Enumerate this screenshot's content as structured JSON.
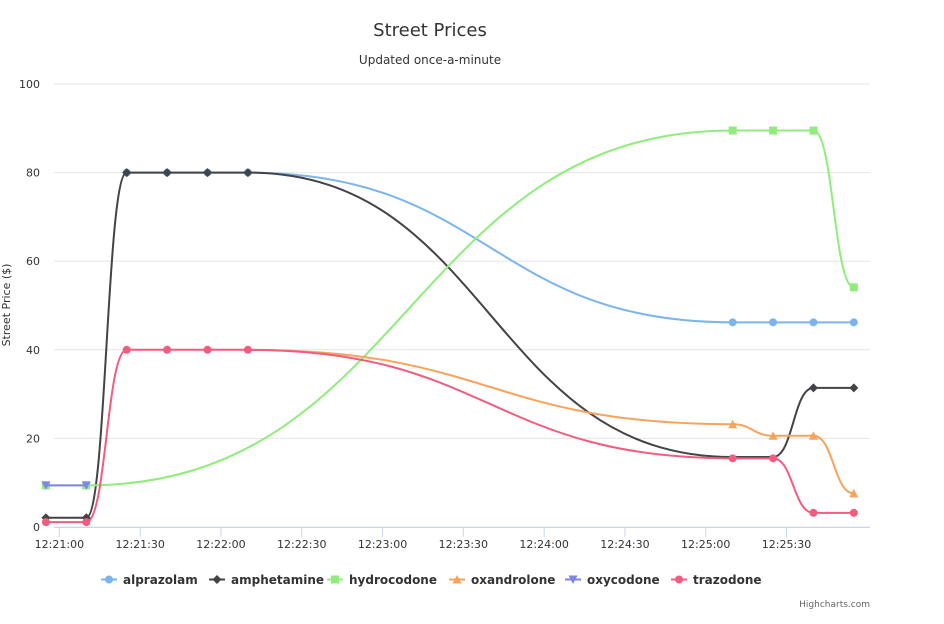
{
  "chart_data": {
    "type": "line",
    "title": "Street Prices",
    "subtitle": "Updated once-a-minute",
    "ylabel": "Street Price ($)",
    "xlabel": "",
    "ylim": [
      0,
      100
    ],
    "yticks": [
      0,
      20,
      40,
      60,
      80,
      100
    ],
    "xlim": [
      "12:20:58",
      "12:26:01"
    ],
    "xticks": [
      "12:21:00",
      "12:21:30",
      "12:22:00",
      "12:22:30",
      "12:23:00",
      "12:23:30",
      "12:24:00",
      "12:24:30",
      "12:25:00",
      "12:25:30"
    ],
    "grid": "horizontal",
    "legend": "bottom",
    "credits": "Highcharts.com",
    "series": [
      {
        "name": "alprazolam",
        "color": "#7cb5ec",
        "marker": "circle",
        "points": [
          {
            "x": "12:21:25",
            "y": 80,
            "m": true
          },
          {
            "x": "12:21:40",
            "y": 80,
            "m": true
          },
          {
            "x": "12:21:55",
            "y": 80,
            "m": true
          },
          {
            "x": "12:22:10",
            "y": 80,
            "m": true
          },
          {
            "x": "12:25:10",
            "y": 46.2,
            "m": true
          },
          {
            "x": "12:25:25",
            "y": 46.2,
            "m": true
          },
          {
            "x": "12:25:40",
            "y": 46.2,
            "m": true
          },
          {
            "x": "12:25:55",
            "y": 46.2,
            "m": true
          }
        ]
      },
      {
        "name": "amphetamine",
        "color": "#434348",
        "marker": "diamond",
        "points": [
          {
            "x": "12:20:55",
            "y": 2.1,
            "m": true
          },
          {
            "x": "12:21:10",
            "y": 2.1,
            "m": true
          },
          {
            "x": "12:21:25",
            "y": 80,
            "m": true
          },
          {
            "x": "12:21:40",
            "y": 80,
            "m": true
          },
          {
            "x": "12:21:55",
            "y": 80,
            "m": true
          },
          {
            "x": "12:22:10",
            "y": 80,
            "m": true
          },
          {
            "x": "12:25:10",
            "y": 15.8,
            "m": false
          },
          {
            "x": "12:25:25",
            "y": 15.8,
            "m": false
          },
          {
            "x": "12:25:40",
            "y": 31.4,
            "m": true
          },
          {
            "x": "12:25:55",
            "y": 31.4,
            "m": true
          }
        ]
      },
      {
        "name": "hydrocodone",
        "color": "#90ed7d",
        "marker": "square",
        "points": [
          {
            "x": "12:20:55",
            "y": 9.4,
            "m": true
          },
          {
            "x": "12:21:10",
            "y": 9.4,
            "m": true
          },
          {
            "x": "12:25:10",
            "y": 89.5,
            "m": true
          },
          {
            "x": "12:25:25",
            "y": 89.5,
            "m": true
          },
          {
            "x": "12:25:40",
            "y": 89.5,
            "m": true
          },
          {
            "x": "12:25:55",
            "y": 54.1,
            "m": true
          }
        ]
      },
      {
        "name": "oxandrolone",
        "color": "#f7a35c",
        "marker": "triangle",
        "points": [
          {
            "x": "12:22:10",
            "y": 40,
            "m": false
          },
          {
            "x": "12:25:10",
            "y": 23.2,
            "m": true
          },
          {
            "x": "12:25:25",
            "y": 20.6,
            "m": true
          },
          {
            "x": "12:25:40",
            "y": 20.6,
            "m": true
          },
          {
            "x": "12:25:55",
            "y": 7.6,
            "m": true
          }
        ]
      },
      {
        "name": "oxycodone",
        "color": "#8085e9",
        "marker": "triangle-down",
        "points": [
          {
            "x": "12:20:55",
            "y": 9.4,
            "m": true
          },
          {
            "x": "12:21:10",
            "y": 9.4,
            "m": true
          }
        ]
      },
      {
        "name": "trazodone",
        "color": "#f15c80",
        "marker": "circle",
        "points": [
          {
            "x": "12:20:55",
            "y": 1.1,
            "m": true
          },
          {
            "x": "12:21:10",
            "y": 1.1,
            "m": true
          },
          {
            "x": "12:21:25",
            "y": 40,
            "m": true
          },
          {
            "x": "12:21:40",
            "y": 40,
            "m": true
          },
          {
            "x": "12:21:55",
            "y": 40,
            "m": true
          },
          {
            "x": "12:22:10",
            "y": 40,
            "m": true
          },
          {
            "x": "12:25:10",
            "y": 15.5,
            "m": true
          },
          {
            "x": "12:25:25",
            "y": 15.5,
            "m": true
          },
          {
            "x": "12:25:40",
            "y": 3.2,
            "m": true
          },
          {
            "x": "12:25:55",
            "y": 3.2,
            "m": true
          }
        ]
      }
    ]
  }
}
